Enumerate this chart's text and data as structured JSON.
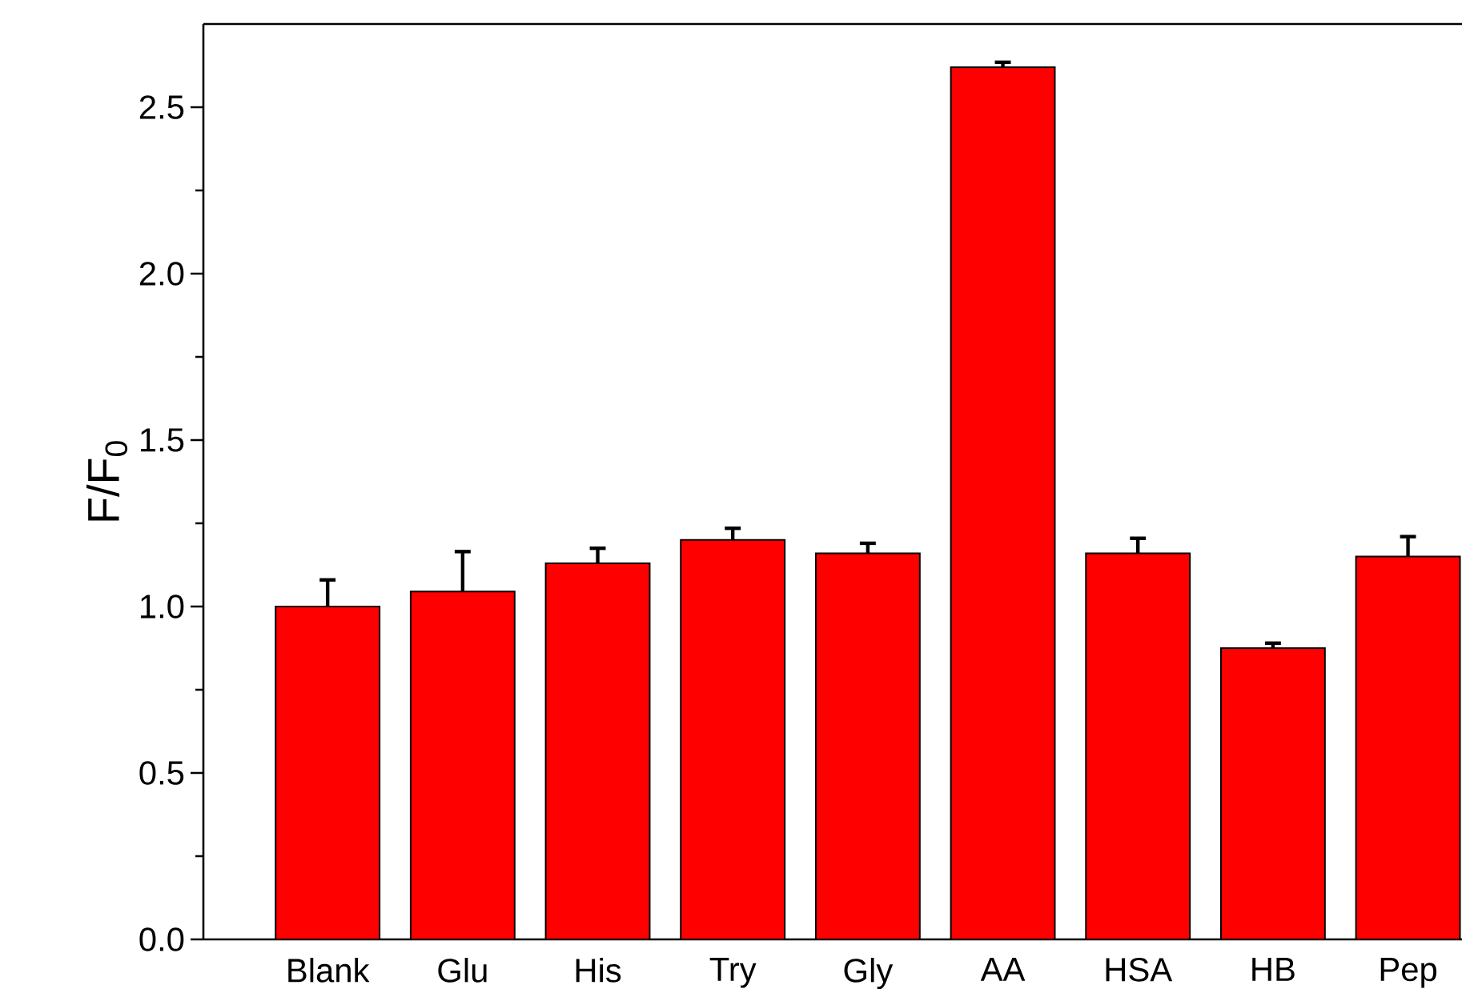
{
  "chart_data": {
    "type": "bar",
    "ylabel": "F/F$_{0}$",
    "categories": [
      "Blank",
      "Glu",
      "His",
      "Try",
      "Gly",
      "AA",
      "HSA",
      "HB",
      "Pep"
    ],
    "values": [
      1.0,
      1.045,
      1.13,
      1.2,
      1.16,
      2.62,
      1.16,
      0.875,
      1.15
    ],
    "errors": [
      [
        1.0,
        1.08
      ],
      [
        1.045,
        1.165
      ],
      [
        1.13,
        1.175
      ],
      [
        1.2,
        1.235
      ],
      [
        1.16,
        1.19
      ],
      [
        2.62,
        2.635
      ],
      [
        1.16,
        1.205
      ],
      [
        0.875,
        0.89
      ],
      [
        1.15,
        1.21
      ]
    ],
    "color": "#ff0000",
    "ylim": [
      0,
      2.75
    ],
    "yticks": [
      {
        "value": 0,
        "label": "0.0"
      },
      {
        "value": 0.5,
        "label": "0.5"
      },
      {
        "value": 1.0,
        "label": "1.0"
      },
      {
        "value": 1.5,
        "label": "1.5"
      },
      {
        "value": 2.0,
        "label": "2.0"
      },
      {
        "value": 2.5,
        "label": "2.5"
      }
    ],
    "grid": false
  }
}
